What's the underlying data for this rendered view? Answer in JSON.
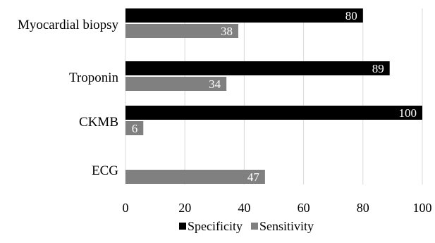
{
  "chart_data": {
    "type": "bar",
    "orientation": "horizontal",
    "categories": [
      "Myocardial biopsy",
      "Troponin",
      "CKMB",
      "ECG"
    ],
    "series": [
      {
        "name": "Specificity",
        "color": "#000000",
        "values": [
          80,
          89,
          100,
          null
        ]
      },
      {
        "name": "Sensitivity",
        "color": "#808080",
        "values": [
          38,
          34,
          6,
          47
        ]
      }
    ],
    "xlim": [
      0,
      100
    ],
    "xticks": [
      0,
      20,
      40,
      60,
      80,
      100
    ],
    "grid": "vertical",
    "legend": "bottom"
  }
}
